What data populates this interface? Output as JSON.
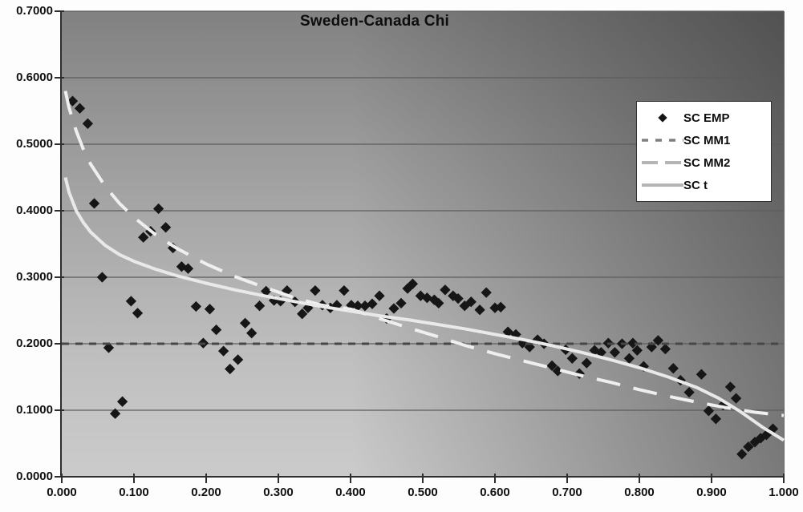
{
  "chart_data": {
    "type": "scatter",
    "title": "Sweden-Canada Chi",
    "xlabel": "",
    "ylabel": "",
    "xlim": [
      0,
      1
    ],
    "ylim": [
      0,
      0.7
    ],
    "grid": true,
    "gridlines_y": [
      0.1,
      0.2,
      0.3,
      0.4,
      0.5,
      0.6,
      0.7
    ],
    "x_ticks": {
      "values": [
        0,
        0.1,
        0.2,
        0.3,
        0.4,
        0.5,
        0.6,
        0.7,
        0.8,
        0.9,
        1.0
      ],
      "labels": [
        "0.000",
        "0.100",
        "0.200",
        "0.300",
        "0.400",
        "0.500",
        "0.600",
        "0.700",
        "0.800",
        "0.900",
        "1.000"
      ]
    },
    "y_ticks": {
      "values": [
        0,
        0.1,
        0.2,
        0.3,
        0.4,
        0.5,
        0.6,
        0.7
      ],
      "labels": [
        "0.0000",
        "0.1000",
        "0.2000",
        "0.3000",
        "0.4000",
        "0.5000",
        "0.6000",
        "0.7000"
      ]
    },
    "legend_position": "right-inside",
    "colors": {
      "gridline": "#5c5c5c",
      "axis": "#2e2e2e",
      "plot_bg_light": "#cbcbcb",
      "plot_bg_dark": "#4f4f4f",
      "legend_bg": "#ffffff",
      "legend_border": "#2f2f2f",
      "legend_line_gray": "#b5b5b5",
      "legend_dash_gray": "#7f7f7f"
    },
    "series": [
      {
        "name": "SC EMP",
        "type": "scatter",
        "marker": "diamond",
        "color": "#161616",
        "points": [
          [
            0.015,
            0.565
          ],
          [
            0.025,
            0.554
          ],
          [
            0.036,
            0.531
          ],
          [
            0.045,
            0.411
          ],
          [
            0.056,
            0.3
          ],
          [
            0.065,
            0.194
          ],
          [
            0.074,
            0.095
          ],
          [
            0.084,
            0.113
          ],
          [
            0.096,
            0.264
          ],
          [
            0.105,
            0.246
          ],
          [
            0.113,
            0.36
          ],
          [
            0.123,
            0.369
          ],
          [
            0.134,
            0.403
          ],
          [
            0.144,
            0.375
          ],
          [
            0.154,
            0.344
          ],
          [
            0.166,
            0.316
          ],
          [
            0.175,
            0.313
          ],
          [
            0.186,
            0.256
          ],
          [
            0.196,
            0.201
          ],
          [
            0.205,
            0.252
          ],
          [
            0.214,
            0.221
          ],
          [
            0.224,
            0.189
          ],
          [
            0.233,
            0.162
          ],
          [
            0.244,
            0.176
          ],
          [
            0.254,
            0.231
          ],
          [
            0.263,
            0.216
          ],
          [
            0.274,
            0.257
          ],
          [
            0.283,
            0.279
          ],
          [
            0.294,
            0.265
          ],
          [
            0.303,
            0.264
          ],
          [
            0.312,
            0.28
          ],
          [
            0.323,
            0.263
          ],
          [
            0.333,
            0.245
          ],
          [
            0.341,
            0.254
          ],
          [
            0.351,
            0.28
          ],
          [
            0.361,
            0.258
          ],
          [
            0.372,
            0.254
          ],
          [
            0.381,
            0.258
          ],
          [
            0.391,
            0.28
          ],
          [
            0.401,
            0.258
          ],
          [
            0.41,
            0.257
          ],
          [
            0.42,
            0.257
          ],
          [
            0.43,
            0.26
          ],
          [
            0.44,
            0.272
          ],
          [
            0.45,
            0.238
          ],
          [
            0.46,
            0.253
          ],
          [
            0.47,
            0.261
          ],
          [
            0.479,
            0.283
          ],
          [
            0.486,
            0.29
          ],
          [
            0.497,
            0.272
          ],
          [
            0.506,
            0.269
          ],
          [
            0.516,
            0.266
          ],
          [
            0.522,
            0.261
          ],
          [
            0.531,
            0.281
          ],
          [
            0.542,
            0.272
          ],
          [
            0.549,
            0.268
          ],
          [
            0.558,
            0.257
          ],
          [
            0.567,
            0.263
          ],
          [
            0.579,
            0.251
          ],
          [
            0.588,
            0.277
          ],
          [
            0.6,
            0.254
          ],
          [
            0.608,
            0.255
          ],
          [
            0.618,
            0.218
          ],
          [
            0.629,
            0.214
          ],
          [
            0.638,
            0.201
          ],
          [
            0.648,
            0.195
          ],
          [
            0.659,
            0.206
          ],
          [
            0.668,
            0.2
          ],
          [
            0.679,
            0.167
          ],
          [
            0.687,
            0.159
          ],
          [
            0.698,
            0.191
          ],
          [
            0.707,
            0.178
          ],
          [
            0.717,
            0.155
          ],
          [
            0.727,
            0.171
          ],
          [
            0.738,
            0.19
          ],
          [
            0.747,
            0.187
          ],
          [
            0.757,
            0.201
          ],
          [
            0.766,
            0.187
          ],
          [
            0.776,
            0.2
          ],
          [
            0.786,
            0.178
          ],
          [
            0.791,
            0.201
          ],
          [
            0.797,
            0.19
          ],
          [
            0.806,
            0.166
          ],
          [
            0.817,
            0.195
          ],
          [
            0.826,
            0.205
          ],
          [
            0.836,
            0.192
          ],
          [
            0.847,
            0.163
          ],
          [
            0.857,
            0.145
          ],
          [
            0.869,
            0.127
          ],
          [
            0.886,
            0.154
          ],
          [
            0.896,
            0.099
          ],
          [
            0.906,
            0.087
          ],
          [
            0.916,
            0.108
          ],
          [
            0.926,
            0.135
          ],
          [
            0.934,
            0.118
          ],
          [
            0.942,
            0.034
          ],
          [
            0.951,
            0.045
          ],
          [
            0.96,
            0.052
          ],
          [
            0.968,
            0.058
          ],
          [
            0.976,
            0.063
          ],
          [
            0.985,
            0.072
          ]
        ]
      },
      {
        "name": "SC MM1",
        "type": "line",
        "style": "short-dash",
        "color": "#474747",
        "width": 3,
        "dash": "9 8",
        "points": [
          [
            0,
            0.2
          ],
          [
            1,
            0.2
          ]
        ]
      },
      {
        "name": "SC MM2",
        "type": "line",
        "style": "long-dash",
        "color": "#efefef",
        "width": 4,
        "dash": "30 17",
        "points": [
          [
            0.005,
            0.58
          ],
          [
            0.01,
            0.555
          ],
          [
            0.02,
            0.52
          ],
          [
            0.03,
            0.492
          ],
          [
            0.04,
            0.47
          ],
          [
            0.06,
            0.437
          ],
          [
            0.08,
            0.411
          ],
          [
            0.1,
            0.39
          ],
          [
            0.13,
            0.364
          ],
          [
            0.16,
            0.343
          ],
          [
            0.2,
            0.32
          ],
          [
            0.24,
            0.301
          ],
          [
            0.28,
            0.285
          ],
          [
            0.32,
            0.27
          ],
          [
            0.36,
            0.258
          ],
          [
            0.4,
            0.252
          ],
          [
            0.44,
            0.238
          ],
          [
            0.48,
            0.224
          ],
          [
            0.52,
            0.211
          ],
          [
            0.56,
            0.197
          ],
          [
            0.6,
            0.185
          ],
          [
            0.64,
            0.174
          ],
          [
            0.68,
            0.163
          ],
          [
            0.72,
            0.152
          ],
          [
            0.76,
            0.142
          ],
          [
            0.8,
            0.131
          ],
          [
            0.84,
            0.121
          ],
          [
            0.88,
            0.112
          ],
          [
            0.92,
            0.104
          ],
          [
            0.96,
            0.097
          ],
          [
            1.0,
            0.092
          ]
        ]
      },
      {
        "name": "SC t",
        "type": "line",
        "style": "solid",
        "color": "#e9e9e9",
        "width": 4,
        "dash": "",
        "points": [
          [
            0.005,
            0.45
          ],
          [
            0.01,
            0.428
          ],
          [
            0.02,
            0.4
          ],
          [
            0.03,
            0.382
          ],
          [
            0.04,
            0.368
          ],
          [
            0.06,
            0.348
          ],
          [
            0.08,
            0.334
          ],
          [
            0.1,
            0.324
          ],
          [
            0.13,
            0.312
          ],
          [
            0.16,
            0.302
          ],
          [
            0.2,
            0.291
          ],
          [
            0.24,
            0.281
          ],
          [
            0.28,
            0.272
          ],
          [
            0.32,
            0.264
          ],
          [
            0.36,
            0.256
          ],
          [
            0.4,
            0.249
          ],
          [
            0.44,
            0.242
          ],
          [
            0.48,
            0.236
          ],
          [
            0.52,
            0.229
          ],
          [
            0.56,
            0.222
          ],
          [
            0.6,
            0.214
          ],
          [
            0.64,
            0.206
          ],
          [
            0.68,
            0.197
          ],
          [
            0.72,
            0.187
          ],
          [
            0.76,
            0.176
          ],
          [
            0.8,
            0.164
          ],
          [
            0.84,
            0.15
          ],
          [
            0.88,
            0.134
          ],
          [
            0.91,
            0.118
          ],
          [
            0.94,
            0.098
          ],
          [
            0.97,
            0.075
          ],
          [
            1.0,
            0.055
          ]
        ]
      }
    ],
    "legend": [
      {
        "label": "SC EMP",
        "swatch": "diamond"
      },
      {
        "label": "SC MM1",
        "swatch": "short-dash"
      },
      {
        "label": "SC MM2",
        "swatch": "long-dash"
      },
      {
        "label": "SC t",
        "swatch": "solid"
      }
    ]
  }
}
